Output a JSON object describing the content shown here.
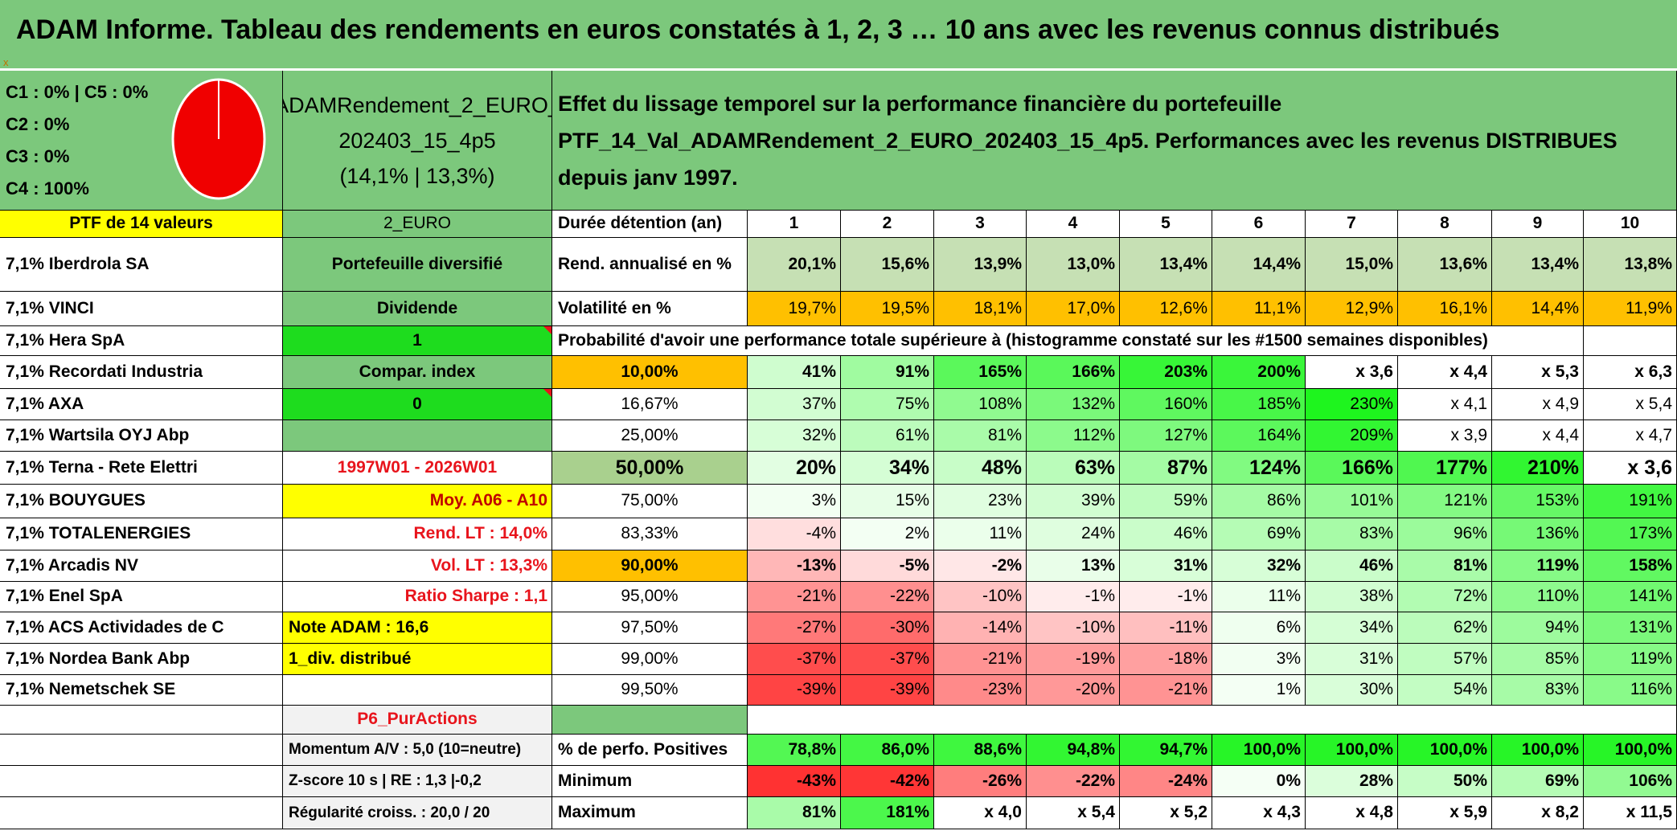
{
  "title": "ADAM Informe. Tableau des rendements en euros constatés à 1, 2, 3 … 10 ans avec les revenus connus distribués",
  "title_mark": "x",
  "allocation": {
    "lines": [
      "C1 : 0% | C5 : 0%",
      "C2 : 0%",
      "C3 : 0%",
      "C4 : 100%"
    ],
    "pie_color": "#f00000"
  },
  "portfolio_name": [
    "ADAMRendement_2_EURO_",
    "202403_15_4p5",
    "(14,1% | 13,3%)"
  ],
  "description": [
    "Effet du lissage temporel sur la performance financière du portefeuille",
    "PTF_14_Val_ADAMRendement_2_EURO_202403_15_4p5. Performances avec les revenus DISTRIBUES depuis janv 1997."
  ],
  "ptf_label": "PTF de 14 valeurs",
  "holdings": [
    "7,1% Iberdrola SA",
    "7,1% VINCI",
    "7,1% Hera SpA",
    "7,1% Recordati Industria",
    "7,1% AXA",
    "7,1% Wartsila OYJ Abp",
    "7,1% Terna - Rete Elettri",
    "7,1% BOUYGUES",
    "7,1% TOTALENERGIES",
    "7,1% Arcadis NV",
    "7,1% Enel SpA",
    "7,1% ACS Actividades de C",
    "7,1% Nordea Bank Abp",
    "7,1% Nemetschek SE"
  ],
  "info": {
    "currency": "2_EURO",
    "type": "Portefeuille diversifié",
    "dividend_label": "Dividende",
    "dividend_value": "1",
    "compar_label": "Compar. index",
    "compar_value": "0",
    "period": "1997W01 - 2026W01",
    "moy": "Moy. A06 - A10",
    "rend_lt": "Rend. LT : 14,0%",
    "vol_lt": "Vol. LT : 13,3%",
    "sharpe": "Ratio Sharpe : 1,1",
    "note": "Note ADAM : 16,6",
    "div": "1_div. distribué",
    "purac": "P6_PurActions",
    "momentum": "Momentum A/V : 5,0 (10=neutre)",
    "zscore": "Z-score 10 s | RE : 1,3 |-0,2",
    "regularite": "Régularité croiss. : 20,0 / 20"
  },
  "table": {
    "duration_label": "Durée détention (an)",
    "years": [
      "1",
      "2",
      "3",
      "4",
      "5",
      "6",
      "7",
      "8",
      "9",
      "10"
    ],
    "rend_label": "Rend. annualisé en %",
    "rend": [
      "20,1%",
      "15,6%",
      "13,9%",
      "13,0%",
      "13,4%",
      "14,4%",
      "15,0%",
      "13,6%",
      "13,4%",
      "13,8%"
    ],
    "vol_label": "Volatilité en %",
    "vol": [
      "19,7%",
      "19,5%",
      "18,1%",
      "17,0%",
      "12,6%",
      "11,1%",
      "12,9%",
      "16,1%",
      "14,4%",
      "11,9%"
    ],
    "prob_title": "Probabilité d'avoir une performance totale supérieure à (histogramme constaté sur les #1500 semaines disponibles)",
    "prob_rows": [
      {
        "p": "10,00%",
        "v": [
          "41%",
          "91%",
          "165%",
          "166%",
          "203%",
          "200%",
          "x 3,6",
          "x 4,4",
          "x 5,3",
          "x 6,3"
        ]
      },
      {
        "p": "16,67%",
        "v": [
          "37%",
          "75%",
          "108%",
          "132%",
          "160%",
          "185%",
          "230%",
          "x 4,1",
          "x 4,9",
          "x 5,4"
        ]
      },
      {
        "p": "25,00%",
        "v": [
          "32%",
          "61%",
          "81%",
          "112%",
          "127%",
          "164%",
          "209%",
          "x 3,9",
          "x 4,4",
          "x 4,7"
        ]
      },
      {
        "p": "50,00%",
        "v": [
          "20%",
          "34%",
          "48%",
          "63%",
          "87%",
          "124%",
          "166%",
          "177%",
          "210%",
          "x 3,6"
        ]
      },
      {
        "p": "75,00%",
        "v": [
          "3%",
          "15%",
          "23%",
          "39%",
          "59%",
          "86%",
          "101%",
          "121%",
          "153%",
          "191%"
        ]
      },
      {
        "p": "83,33%",
        "v": [
          "-4%",
          "2%",
          "11%",
          "24%",
          "46%",
          "69%",
          "83%",
          "96%",
          "136%",
          "173%"
        ]
      },
      {
        "p": "90,00%",
        "v": [
          "-13%",
          "-5%",
          "-2%",
          "13%",
          "31%",
          "32%",
          "46%",
          "81%",
          "119%",
          "158%"
        ]
      },
      {
        "p": "95,00%",
        "v": [
          "-21%",
          "-22%",
          "-10%",
          "-1%",
          "-1%",
          "11%",
          "38%",
          "72%",
          "110%",
          "141%"
        ]
      },
      {
        "p": "97,50%",
        "v": [
          "-27%",
          "-30%",
          "-14%",
          "-10%",
          "-11%",
          "6%",
          "34%",
          "62%",
          "94%",
          "131%"
        ]
      },
      {
        "p": "99,00%",
        "v": [
          "-37%",
          "-37%",
          "-21%",
          "-19%",
          "-18%",
          "3%",
          "31%",
          "57%",
          "85%",
          "119%"
        ]
      },
      {
        "p": "99,50%",
        "v": [
          "-39%",
          "-39%",
          "-23%",
          "-20%",
          "-21%",
          "1%",
          "30%",
          "54%",
          "83%",
          "116%"
        ]
      }
    ],
    "pos_label": "% de perfo. Positives",
    "pos": [
      "78,8%",
      "86,0%",
      "88,6%",
      "94,8%",
      "94,7%",
      "100,0%",
      "100,0%",
      "100,0%",
      "100,0%",
      "100,0%"
    ],
    "min_label": "Minimum",
    "min": [
      "-43%",
      "-42%",
      "-26%",
      "-22%",
      "-24%",
      "0%",
      "28%",
      "50%",
      "69%",
      "106%"
    ],
    "max_label": "Maximum",
    "max": [
      "81%",
      "181%",
      "x 4,0",
      "x 5,4",
      "x 5,2",
      "x 4,3",
      "x 4,8",
      "x 5,9",
      "x 8,2",
      "x 11,5"
    ]
  }
}
